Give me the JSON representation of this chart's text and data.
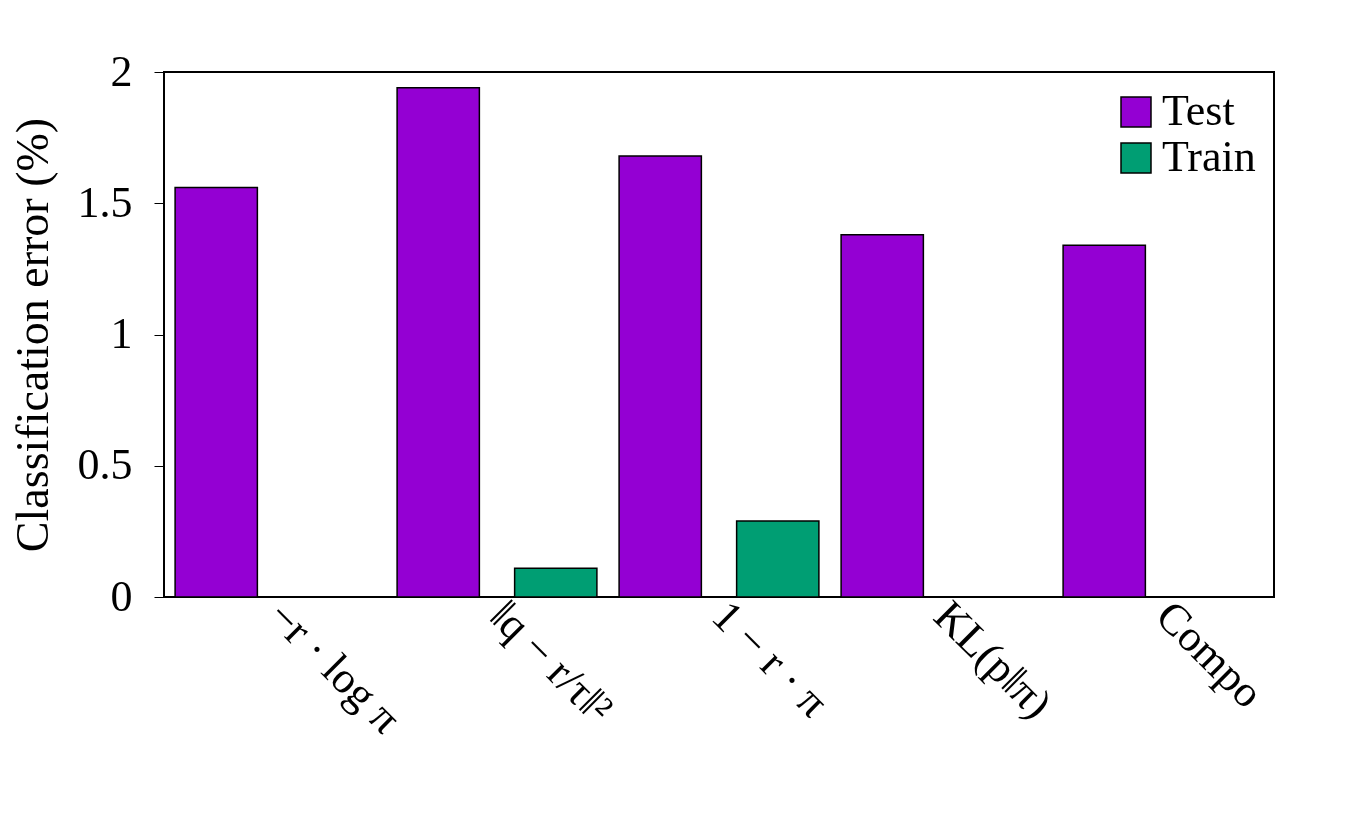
{
  "chart_data": {
    "type": "bar",
    "ylabel": "Classification error (%)",
    "categories": [
      "−r · log π",
      "‖q − r/τ‖²",
      "1 − r · π",
      "KL(p‖π)",
      "Compo"
    ],
    "series": [
      {
        "name": "Test",
        "color": "#9400d3",
        "values": [
          1.56,
          1.94,
          1.68,
          1.38,
          1.34
        ]
      },
      {
        "name": "Train",
        "color": "#009e73",
        "values": [
          null,
          0.11,
          0.29,
          null,
          null
        ]
      }
    ],
    "ylim": [
      0,
      2
    ],
    "yticks": [
      0,
      0.5,
      1,
      1.5,
      2
    ],
    "grid": false,
    "legend": "top right"
  }
}
